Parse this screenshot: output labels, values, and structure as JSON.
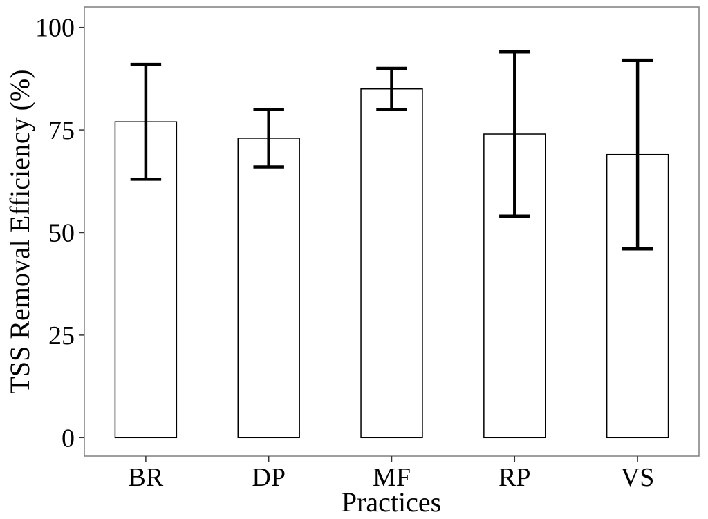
{
  "chart_data": {
    "type": "bar",
    "title": "",
    "xlabel": "Practices",
    "ylabel": "TSS Removal Efficiency (%)",
    "categories": [
      "BR",
      "DP",
      "MF",
      "RP",
      "VS"
    ],
    "values": [
      77,
      73,
      85,
      74,
      69
    ],
    "error_bars": {
      "lower": [
        63,
        66,
        80,
        54,
        46
      ],
      "upper": [
        91,
        80,
        90,
        94,
        92
      ]
    },
    "ylim": [
      -4.5,
      105
    ],
    "yticks": [
      0,
      25,
      50,
      75,
      100
    ],
    "grid": false,
    "legend": "none",
    "colors": {
      "bar_fill": "#ffffff",
      "bar_stroke": "#000000",
      "error_bar": "#000000",
      "panel_border": "#7f7f7f"
    }
  }
}
